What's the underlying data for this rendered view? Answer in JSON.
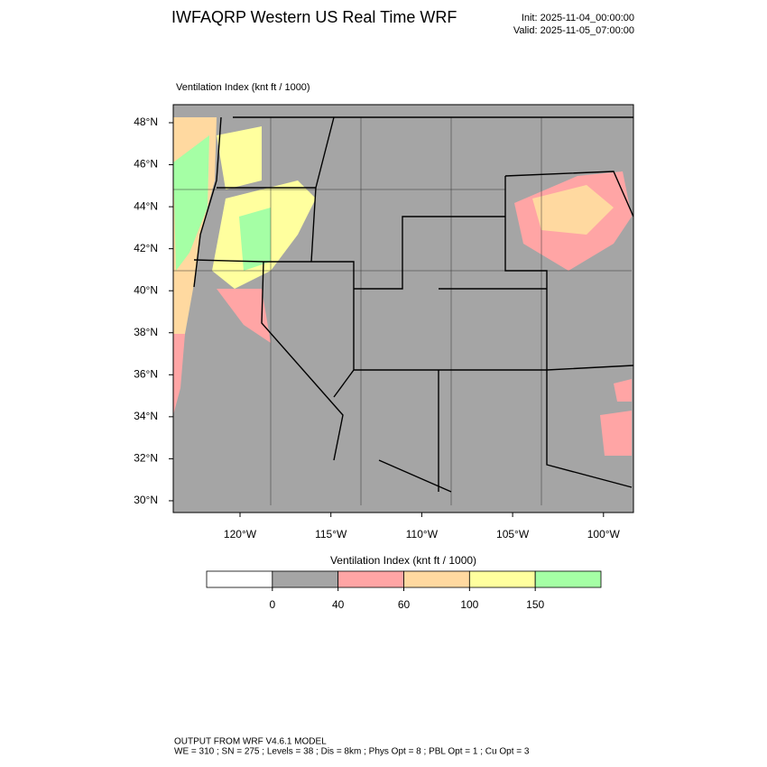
{
  "header": {
    "title": "IWFAQRP Western US Real Time WRF",
    "init": "Init: 2025-11-04_00:00:00",
    "valid": "Valid: 2025-11-05_07:00:00"
  },
  "map": {
    "title": "Ventilation Index   (knt ft / 1000)",
    "lat_labels": [
      "48°N",
      "46°N",
      "44°N",
      "42°N",
      "40°N",
      "38°N",
      "36°N",
      "34°N",
      "32°N",
      "30°N"
    ],
    "lon_labels": [
      "120°W",
      "115°W",
      "110°W",
      "105°W",
      "100°W"
    ]
  },
  "colorbar": {
    "title": "Ventilation Index   (knt ft / 1000)",
    "ticks": [
      0,
      40,
      60,
      100,
      150
    ],
    "colors": [
      "#ffffff",
      "#a5a5a5",
      "#ffa5a5",
      "#ffd9a0",
      "#ffff9e",
      "#a5ffa5"
    ]
  },
  "footer": {
    "line1": "OUTPUT FROM WRF V4.6.1 MODEL",
    "line2": "WE = 310 ; SN = 275 ; Levels = 38 ; Dis = 8km ; Phys Opt = 8 ; PBL Opt = 1 ; Cu Opt = 3"
  }
}
